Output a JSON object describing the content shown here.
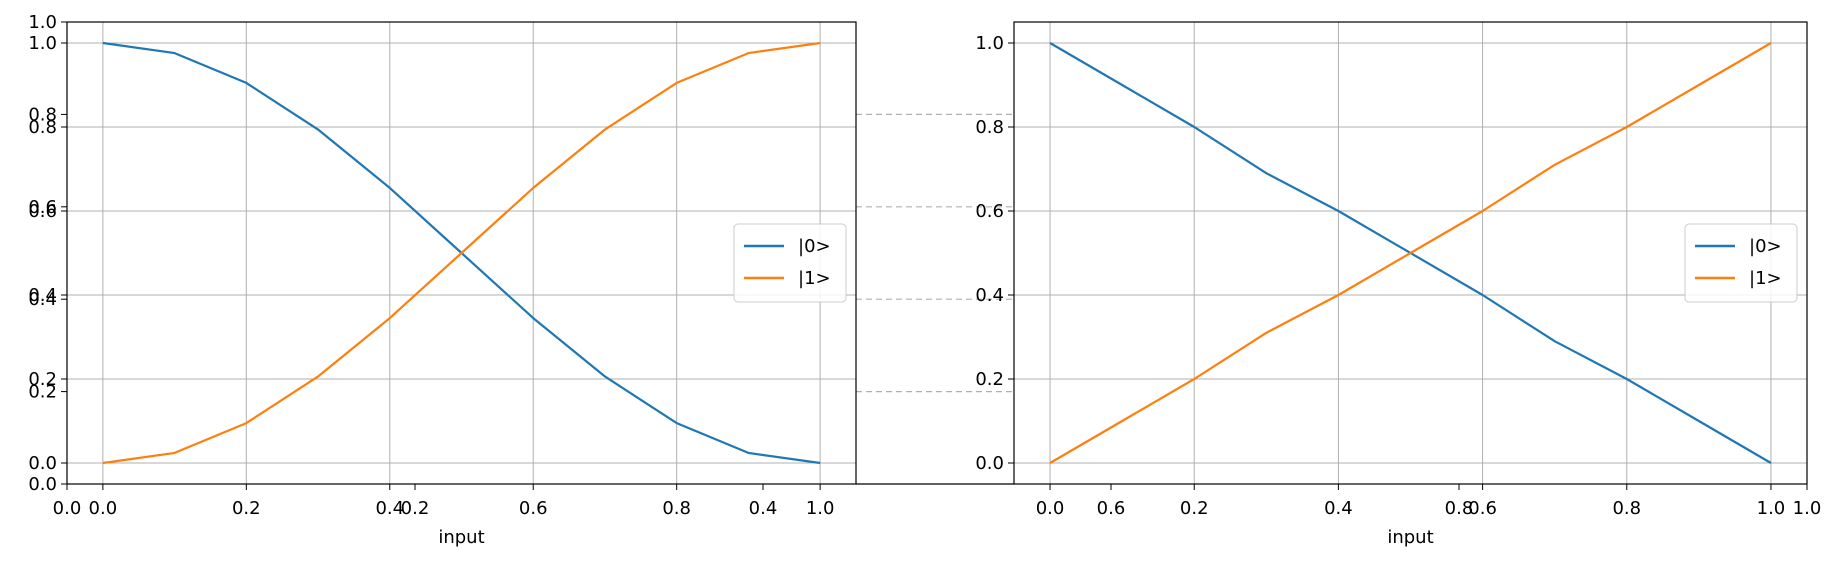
{
  "chart_data": [
    {
      "type": "line",
      "panel": "left",
      "xlabel": "input",
      "ylabel": "",
      "xlim": [
        -0.05,
        1.05
      ],
      "ylim": [
        -0.05,
        1.05
      ],
      "x_ticks": [
        "0.0",
        "0.2",
        "0.4",
        "0.6",
        "0.8",
        "1.0"
      ],
      "y_ticks": [
        "0.0",
        "0.2",
        "0.4",
        "0.6",
        "0.8",
        "1.0"
      ],
      "grid": true,
      "legend_position": "center-right",
      "x": [
        0.0,
        0.1,
        0.2,
        0.3,
        0.4,
        0.5,
        0.6,
        0.7,
        0.8,
        0.9,
        1.0
      ],
      "series": [
        {
          "name": "|0>",
          "color": "#1f77b4",
          "values": [
            1.0,
            0.976,
            0.905,
            0.794,
            0.655,
            0.5,
            0.345,
            0.206,
            0.095,
            0.024,
            0.0
          ]
        },
        {
          "name": "|1>",
          "color": "#ff7f0e",
          "values": [
            0.0,
            0.024,
            0.095,
            0.206,
            0.345,
            0.5,
            0.655,
            0.794,
            0.905,
            0.976,
            1.0
          ]
        }
      ]
    },
    {
      "type": "line",
      "panel": "right",
      "xlabel": "input",
      "ylabel": "",
      "xlim": [
        -0.05,
        1.05
      ],
      "ylim": [
        -0.05,
        1.05
      ],
      "x_ticks": [
        "0.0",
        "0.2",
        "0.4",
        "0.6",
        "0.8",
        "1.0"
      ],
      "y_ticks": [
        "0.0",
        "0.2",
        "0.4",
        "0.6",
        "0.8",
        "1.0"
      ],
      "grid": true,
      "legend_position": "center-right",
      "x": [
        0.0,
        0.1,
        0.2,
        0.3,
        0.4,
        0.5,
        0.6,
        0.7,
        0.8,
        0.9,
        1.0
      ],
      "series": [
        {
          "name": "|0>",
          "color": "#1f77b4",
          "values": [
            1.0,
            0.9,
            0.8,
            0.69,
            0.6,
            0.5,
            0.4,
            0.29,
            0.2,
            0.1,
            0.0
          ]
        },
        {
          "name": "|1>",
          "color": "#ff7f0e",
          "values": [
            0.0,
            0.1,
            0.2,
            0.31,
            0.4,
            0.5,
            0.6,
            0.71,
            0.8,
            0.9,
            1.0
          ]
        }
      ]
    }
  ],
  "overlay_axes": {
    "x_ticks": [
      "0.0",
      "0.2",
      "0.4",
      "0.6",
      "0.8",
      "1.0"
    ],
    "y_ticks": [
      "0.0",
      "0.2",
      "0.4",
      "0.6",
      "0.8",
      "1.0"
    ]
  }
}
